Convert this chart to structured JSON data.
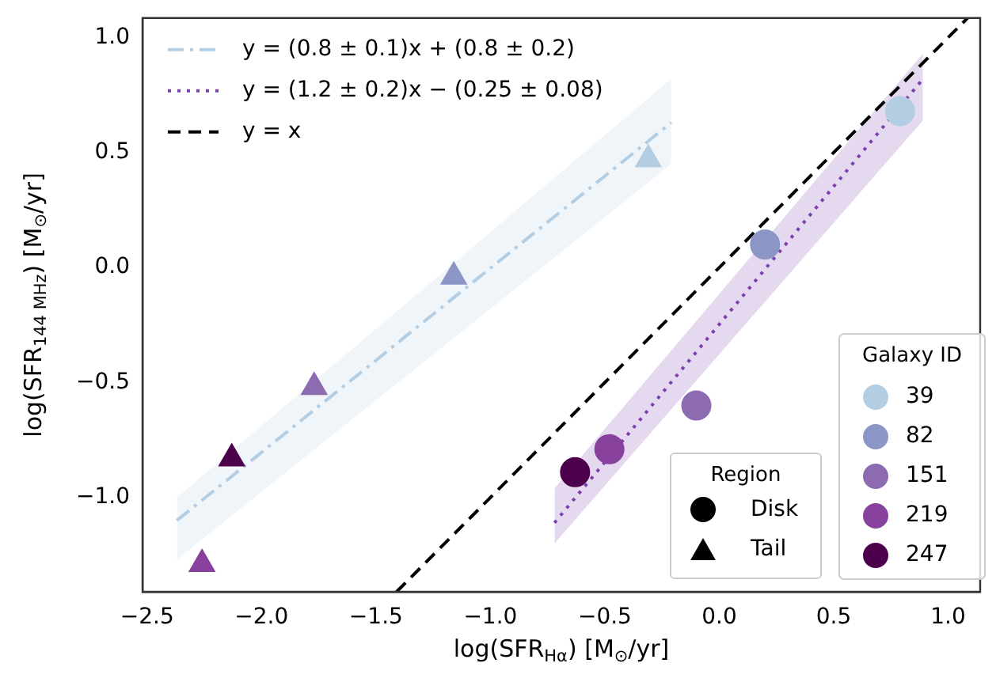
{
  "chart_data": {
    "type": "scatter",
    "xlabel": "log(SFR$_{Hα}$) [M$_{⊙}$/yr]",
    "ylabel": "log(SFR$_{144 MHz}$) [M$_{⊙}$/yr]",
    "legend_title": "Galaxy ID",
    "legend": "top left",
    "xlim": [
      -2.52,
      1.14
    ],
    "ylim": [
      -1.41,
      1.085
    ],
    "xticks": [
      {
        "value": -2.5,
        "label": "−2.5"
      },
      {
        "value": -2,
        "label": "−2.0"
      },
      {
        "value": -1.5,
        "label": "−1.5"
      },
      {
        "value": -1,
        "label": "−1.0"
      },
      {
        "value": -0.5,
        "label": "−0.5"
      },
      {
        "value": 0,
        "label": "0.0"
      },
      {
        "value": 0.5,
        "label": "0.5"
      },
      {
        "value": 1,
        "label": "1.0"
      }
    ],
    "yticks": [
      {
        "value": -1,
        "label": "−1.0"
      },
      {
        "value": -0.5,
        "label": "−0.5"
      },
      {
        "value": 0,
        "label": "0.0"
      },
      {
        "value": 0.5,
        "label": "0.5"
      },
      {
        "value": 1,
        "label": "1.0"
      }
    ],
    "annotations": [
      "Region",
      "Disk",
      "Tail"
    ],
    "series": [
      {
        "type": "line",
        "name": "y = (0.8 ± 0.1)x + (0.8 ± 0.2)",
        "color": "#b3cde3",
        "line_style": "dashdot",
        "x": [
          -2.37,
          -0.21
        ],
        "values": [
          -1.1,
          0.63
        ],
        "lower": [
          -1.27,
          0.45
        ],
        "upper": [
          -1.0,
          0.82
        ]
      },
      {
        "type": "line",
        "name": "y = (1.2 ± 0.2)x − (0.25 ± 0.08)",
        "color": "#7b3fb0",
        "line_style": "dotted",
        "x": [
          -0.72,
          0.89
        ],
        "values": [
          -1.11,
          0.82
        ],
        "lower": [
          -1.2,
          0.64
        ],
        "upper": [
          -0.96,
          0.93
        ]
      },
      {
        "type": "line",
        "name": "y = x",
        "color": "#000000",
        "line_style": "dashed",
        "x": [
          -1.41,
          1.085
        ],
        "values": [
          -1.41,
          1.085
        ]
      },
      {
        "name": "39",
        "color": "#b3cde3",
        "marker": "circle",
        "x": [
          0.79
        ],
        "values": [
          0.68
        ]
      },
      {
        "name": "82",
        "color": "#8c96c6",
        "marker": "circle",
        "x": [
          0.2
        ],
        "values": [
          0.1
        ]
      },
      {
        "name": "151",
        "color": "#8c6bb1",
        "marker": "circle",
        "x": [
          -0.1
        ],
        "values": [
          -0.6
        ]
      },
      {
        "name": "219",
        "color": "#88419d",
        "marker": "circle",
        "x": [
          -0.48
        ],
        "values": [
          -0.79
        ]
      },
      {
        "name": "247",
        "color": "#4d004b",
        "marker": "circle",
        "x": [
          -0.63
        ],
        "values": [
          -0.89
        ]
      },
      {
        "color": "#b3cde3",
        "marker": "triangle",
        "x": [
          -0.31
        ],
        "values": [
          0.47
        ]
      },
      {
        "color": "#8c96c6",
        "marker": "triangle",
        "x": [
          -1.16
        ],
        "values": [
          -0.04
        ]
      },
      {
        "color": "#8c6bb1",
        "marker": "triangle",
        "x": [
          -1.77
        ],
        "values": [
          -0.52
        ]
      },
      {
        "color": "#88419d",
        "marker": "triangle",
        "x": [
          -2.26
        ],
        "values": [
          -1.29
        ]
      },
      {
        "color": "#4d004b",
        "marker": "triangle",
        "x": [
          -2.13
        ],
        "values": [
          -0.83
        ]
      }
    ]
  }
}
